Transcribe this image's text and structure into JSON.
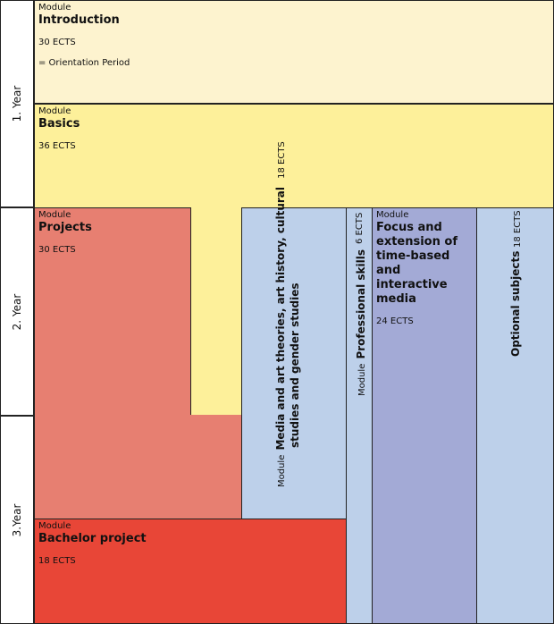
{
  "colors": {
    "intro": "#fdf3cf",
    "basics": "#fdf09a",
    "projects": "#e77f71",
    "bachelor": "#e84637",
    "light_blue": "#bdd0ea",
    "focus": "#a3aad6"
  },
  "years": {
    "y1": "1. Year",
    "y2": "2. Year",
    "y3": "3.Year"
  },
  "introduction": {
    "module": "Module",
    "title": "Introduction",
    "ects": "30 ECTS",
    "note": "= Orientation Period"
  },
  "basics": {
    "module": "Module",
    "title": "Basics",
    "ects": "36 ECTS"
  },
  "projects": {
    "module": "Module",
    "title": "Projects",
    "ects": "30 ECTS"
  },
  "bachelor_project": {
    "module": "Module",
    "title": "Bachelor project",
    "ects": "18 ECTS"
  },
  "media_theories": {
    "module": "Module",
    "title_line1": "Media and art theories, art history, cultural",
    "title_line2": "studies and gender studies",
    "ects": "18 ECTS"
  },
  "professional_skills": {
    "module": "Module",
    "title": "Professional skills",
    "ects": "6 ECTS"
  },
  "focus": {
    "module": "Module",
    "title_line1": "Focus and",
    "title_line2": "extension of",
    "title_line3": "time-based and",
    "title_line4": "interactive media",
    "ects": "24 ECTS"
  },
  "optional_subjects": {
    "title": "Optional subjects",
    "ects": "18 ECTS"
  }
}
